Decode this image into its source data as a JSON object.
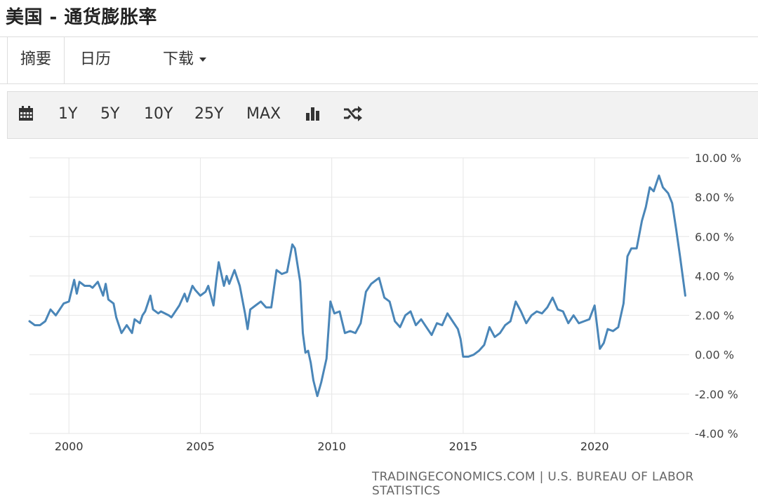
{
  "page": {
    "title": "美国 - 通货膨胀率"
  },
  "tabs": [
    {
      "label": "摘要"
    },
    {
      "label": "日历"
    },
    {
      "label": "下载"
    }
  ],
  "toolbar": {
    "icons": [
      "calendar-icon",
      "bar-chart-icon",
      "shuffle-icon"
    ],
    "ranges": [
      "1Y",
      "5Y",
      "10Y",
      "25Y",
      "MAX"
    ]
  },
  "source": "TRADINGECONOMICS.COM | U.S. BUREAU OF LABOR STATISTICS",
  "colors": {
    "line": "#4a86b8",
    "grid": "#e6e6e6"
  },
  "chart_data": {
    "type": "line",
    "title": "",
    "xlabel": "",
    "ylabel": "",
    "xlim": [
      1998.5,
      2023.6
    ],
    "ylim": [
      -4,
      10
    ],
    "x_ticks": [
      2000,
      2005,
      2010,
      2015,
      2020
    ],
    "y_ticks": [
      10,
      8,
      6,
      4,
      2,
      0,
      -2,
      -4
    ],
    "y_tick_labels": [
      "10.00 %",
      "8.00 %",
      "6.00 %",
      "4.00 %",
      "2.00 %",
      "0.00 %",
      "-2.00 %",
      "-4.00 %"
    ],
    "grid": true,
    "series": [
      {
        "x": [
          1998.5,
          1998.7,
          1998.9,
          1999.1,
          1999.3,
          1999.5,
          1999.6,
          1999.8,
          2000.0,
          2000.2,
          2000.3,
          2000.4,
          2000.6,
          2000.8,
          2000.9,
          2001.1,
          2001.3,
          2001.4,
          2001.5,
          2001.7,
          2001.8,
          2002.0,
          2002.2,
          2002.4,
          2002.5,
          2002.7,
          2002.8,
          2002.9,
          2003.1,
          2003.2,
          2003.4,
          2003.5,
          2003.8,
          2003.9,
          2004.2,
          2004.4,
          2004.5,
          2004.7,
          2004.8,
          2005.0,
          2005.2,
          2005.3,
          2005.5,
          2005.6,
          2005.7,
          2005.9,
          2006.0,
          2006.1,
          2006.3,
          2006.5,
          2006.7,
          2006.8,
          2006.9,
          2007.1,
          2007.3,
          2007.5,
          2007.7,
          2007.9,
          2008.1,
          2008.3,
          2008.5,
          2008.6,
          2008.8,
          2008.9,
          2009.0,
          2009.1,
          2009.2,
          2009.3,
          2009.45,
          2009.6,
          2009.8,
          2009.95,
          2010.1,
          2010.3,
          2010.5,
          2010.7,
          2010.9,
          2011.1,
          2011.3,
          2011.5,
          2011.7,
          2011.8,
          2012.0,
          2012.2,
          2012.4,
          2012.6,
          2012.8,
          2013.0,
          2013.2,
          2013.4,
          2013.6,
          2013.8,
          2014.0,
          2014.2,
          2014.4,
          2014.6,
          2014.8,
          2014.9,
          2015.0,
          2015.2,
          2015.4,
          2015.6,
          2015.8,
          2016.0,
          2016.2,
          2016.4,
          2016.6,
          2016.8,
          2017.0,
          2017.2,
          2017.4,
          2017.6,
          2017.8,
          2018.0,
          2018.2,
          2018.4,
          2018.6,
          2018.8,
          2019.0,
          2019.2,
          2019.4,
          2019.6,
          2019.8,
          2020.0,
          2020.2,
          2020.35,
          2020.5,
          2020.7,
          2020.9,
          2021.1,
          2021.25,
          2021.4,
          2021.6,
          2021.8,
          2021.95,
          2022.1,
          2022.25,
          2022.45,
          2022.6,
          2022.8,
          2022.95,
          2023.1,
          2023.25,
          2023.45
        ],
        "y": [
          1.7,
          1.5,
          1.5,
          1.7,
          2.3,
          2.0,
          2.2,
          2.6,
          2.7,
          3.8,
          3.1,
          3.7,
          3.5,
          3.5,
          3.4,
          3.7,
          3.0,
          3.6,
          2.8,
          2.6,
          1.9,
          1.1,
          1.5,
          1.1,
          1.8,
          1.6,
          2.0,
          2.2,
          3.0,
          2.3,
          2.1,
          2.2,
          2.0,
          1.9,
          2.5,
          3.1,
          2.7,
          3.5,
          3.3,
          3.0,
          3.2,
          3.5,
          2.5,
          3.7,
          4.7,
          3.5,
          4.0,
          3.6,
          4.3,
          3.5,
          2.1,
          1.3,
          2.3,
          2.5,
          2.7,
          2.4,
          2.4,
          4.3,
          4.1,
          4.2,
          5.6,
          5.4,
          3.7,
          1.1,
          0.1,
          0.2,
          -0.4,
          -1.3,
          -2.1,
          -1.4,
          -0.2,
          2.7,
          2.1,
          2.2,
          1.1,
          1.2,
          1.1,
          1.6,
          3.2,
          3.6,
          3.8,
          3.9,
          2.9,
          2.7,
          1.7,
          1.4,
          2.0,
          2.2,
          1.5,
          1.8,
          1.4,
          1.0,
          1.6,
          1.5,
          2.1,
          1.7,
          1.3,
          0.8,
          -0.1,
          -0.1,
          0.0,
          0.2,
          0.5,
          1.4,
          0.9,
          1.1,
          1.5,
          1.7,
          2.7,
          2.2,
          1.6,
          2.0,
          2.2,
          2.1,
          2.4,
          2.9,
          2.3,
          2.2,
          1.6,
          2.0,
          1.6,
          1.7,
          1.8,
          2.5,
          0.3,
          0.6,
          1.3,
          1.2,
          1.4,
          2.6,
          5.0,
          5.4,
          5.4,
          6.8,
          7.5,
          8.5,
          8.3,
          9.1,
          8.5,
          8.2,
          7.7,
          6.4,
          5.0,
          3.0
        ]
      }
    ]
  }
}
